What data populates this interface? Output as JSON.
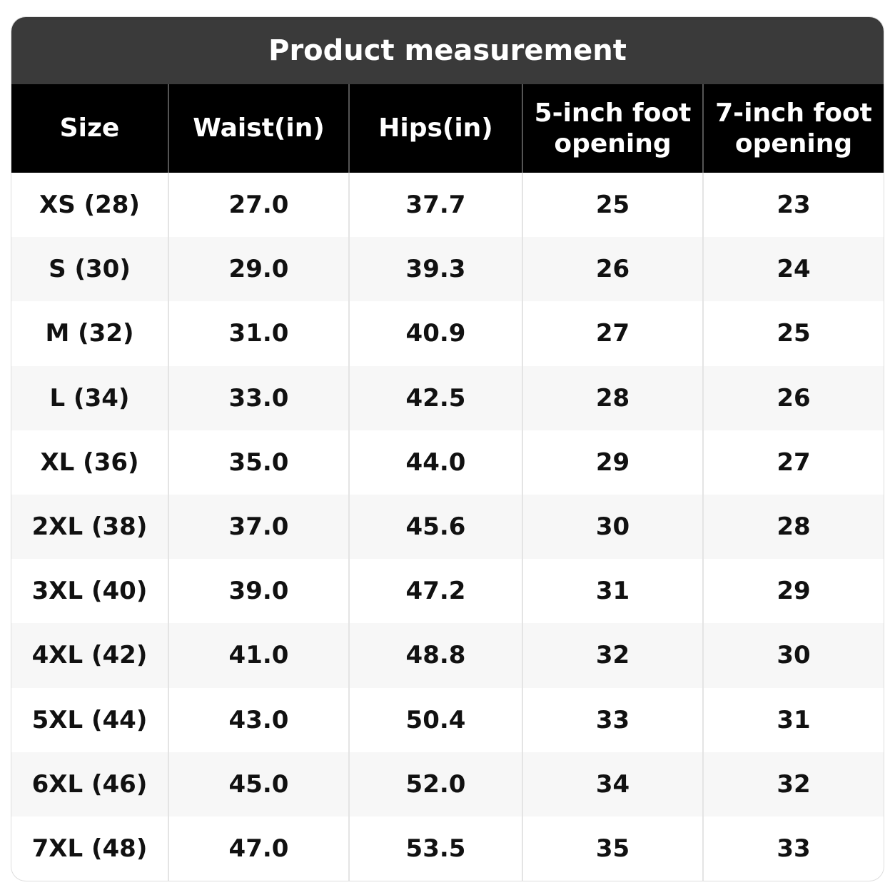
{
  "header": {
    "title": "Product measurement"
  },
  "table": {
    "columns": [
      "Size",
      "Waist(in)",
      "Hips(in)",
      "5-inch foot opening",
      "7-inch foot opening"
    ],
    "rows": [
      [
        "XS (28)",
        "27.0",
        "37.7",
        "25",
        "23"
      ],
      [
        "S (30)",
        "29.0",
        "39.3",
        "26",
        "24"
      ],
      [
        "M (32)",
        "31.0",
        "40.9",
        "27",
        "25"
      ],
      [
        "L (34)",
        "33.0",
        "42.5",
        "28",
        "26"
      ],
      [
        "XL (36)",
        "35.0",
        "44.0",
        "29",
        "27"
      ],
      [
        "2XL (38)",
        "37.0",
        "45.6",
        "30",
        "28"
      ],
      [
        "3XL (40)",
        "39.0",
        "47.2",
        "31",
        "29"
      ],
      [
        "4XL (42)",
        "41.0",
        "48.8",
        "32",
        "30"
      ],
      [
        "5XL (44)",
        "43.0",
        "50.4",
        "33",
        "31"
      ],
      [
        "6XL (46)",
        "45.0",
        "52.0",
        "34",
        "32"
      ],
      [
        "7XL (48)",
        "47.0",
        "53.5",
        "35",
        "33"
      ]
    ]
  }
}
